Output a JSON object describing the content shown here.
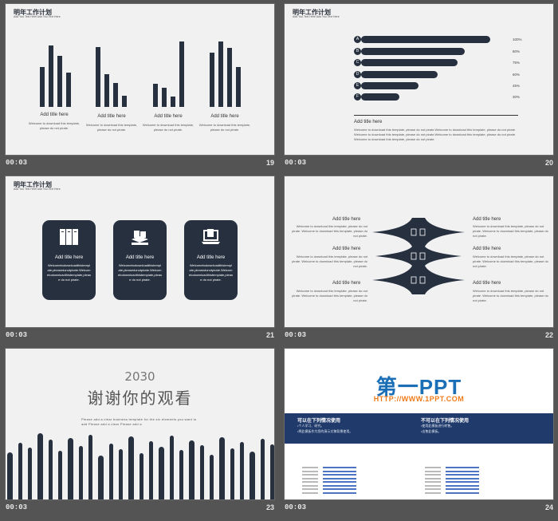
{
  "slides": [
    {
      "number": "19",
      "time": "00:03",
      "title": "明年工作计划",
      "subtitle": "Add You Text Here Add You Text Here",
      "items": [
        {
          "title": "Add title here",
          "desc": "Welcome to download this template, please do not pirate."
        },
        {
          "title": "Add title here",
          "desc": "Welcome to download this template, please do not pirate."
        },
        {
          "title": "Add title here",
          "desc": "Welcome to download this template, please do not pirate."
        },
        {
          "title": "Add title here",
          "desc": "Welcome to download this template, please do not pirate."
        }
      ]
    },
    {
      "number": "20",
      "time": "00:03",
      "title": "明年工作计划",
      "subtitle": "Add You Text Here Add You Text Here",
      "bars": [
        {
          "letter": "A",
          "value": "100%"
        },
        {
          "letter": "B",
          "value": "80%"
        },
        {
          "letter": "C",
          "value": "75%"
        },
        {
          "letter": "D",
          "value": "60%"
        },
        {
          "letter": "E",
          "value": "45%"
        },
        {
          "letter": "F",
          "value": "30%"
        }
      ],
      "block_title": "Add title here",
      "block_desc": "Welcome to download this template, please do not pirate.Welcome to download this template, please do not pirate. Welcome to download this template, please do not pirate.Welcome to download this template, please do not pirate. Welcome to download this template, please do not pirate."
    },
    {
      "number": "21",
      "time": "00:03",
      "title": "明年工作计划",
      "subtitle": "Add You Text Here Add You Text Here",
      "cards": [
        {
          "icon": "lockers-icon",
          "title": "Add title here",
          "desc": "Welcometodownloadthistemplate,pleasedonotpirate.Welcometodownloadthistemplate,please do not pirate."
        },
        {
          "icon": "books-icon",
          "title": "Add title here",
          "desc": "Welcometodownloadthistemplate,pleasedonotpirate.Welcometodownloadthistemplate,please do not pirate."
        },
        {
          "icon": "laptop-icon",
          "title": "Add title here",
          "desc": "Welcometodownloadthistemplate,pleasedonotpirate.Welcometodownloadthistemplate,please do not pirate."
        }
      ]
    },
    {
      "number": "22",
      "time": "00:03",
      "items": [
        {
          "title": "Add title here",
          "desc": "Welcome to download this template, please do not pirate. Welcome to download this template, please do not pirate."
        },
        {
          "title": "Add title here",
          "desc": "Welcome to download this template, please do not pirate. Welcome to download this template, please do not pirate."
        },
        {
          "title": "Add title here",
          "desc": "Welcome to download this template, please do not pirate. Welcome to download this template, please do not pirate."
        },
        {
          "title": "Add title here",
          "desc": "Welcome to download this template, please do not pirate. Welcome to download this template, please do not pirate."
        },
        {
          "title": "Add title here",
          "desc": "Welcome to download this template, please do not pirate. Welcome to download this template, please do not pirate."
        },
        {
          "title": "Add title here",
          "desc": "Welcome to download this template, please do not pirate. Welcome to download this template, please do not pirate."
        }
      ]
    },
    {
      "number": "23",
      "time": "00:03",
      "year": "2030",
      "heading": "谢谢你的观看",
      "desc": "Please add a clear business template for the six elements you want to add Please add a clear Please add a"
    },
    {
      "number": "24",
      "time": "00:03",
      "logo": "第一PPT",
      "url": "HTTP://WWW.1PPT.COM",
      "can_title": "可以在下列情况使用",
      "can_items": [
        "•个人学习、研究。",
        "•将此模板作为您的演示文稿背景使用。"
      ],
      "cannot_title": "不可以在下列情况使用",
      "cannot_items": [
        "•使用此模板进行转售。",
        "•出售此模板。"
      ]
    }
  ],
  "colors": {
    "dark": "#27303f",
    "page_bg": "#545454",
    "slide_bg": "#f1f1f2",
    "logo_blue": "#1b6fb7",
    "logo_orange": "#f07b1a"
  }
}
